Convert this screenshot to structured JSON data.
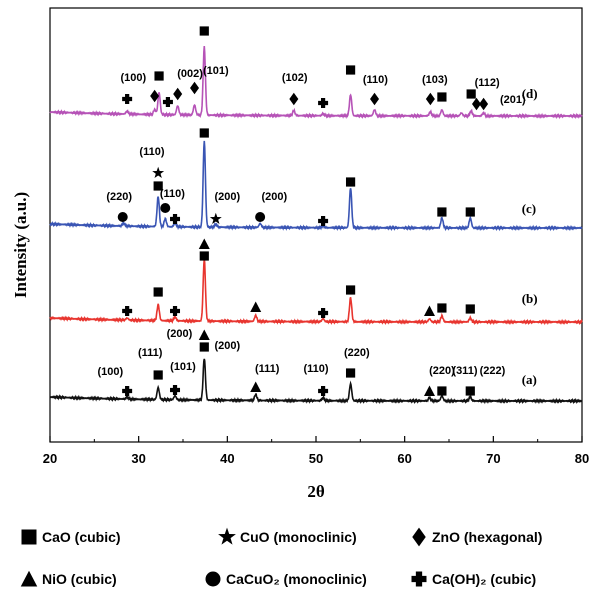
{
  "chart_data": {
    "type": "line",
    "xlabel": "2θ",
    "ylabel": "Intensity (a.u.)",
    "xlim": [
      20,
      80
    ],
    "xticks": [
      20,
      30,
      40,
      50,
      60,
      70,
      80
    ],
    "yticks": "none",
    "grid": false,
    "series": [
      {
        "name": "(a)",
        "color": "#111111",
        "peaks": [
          {
            "x": 28.7,
            "h": 2
          },
          {
            "x": 32.2,
            "h": 12
          },
          {
            "x": 34.1,
            "h": 4
          },
          {
            "x": 37.4,
            "h": 42
          },
          {
            "x": 43.2,
            "h": 6
          },
          {
            "x": 50.8,
            "h": 3
          },
          {
            "x": 53.9,
            "h": 17
          },
          {
            "x": 62.8,
            "h": 3
          },
          {
            "x": 64.2,
            "h": 5
          },
          {
            "x": 67.4,
            "h": 4
          }
        ]
      },
      {
        "name": "(b)",
        "color": "#e8352f",
        "peaks": [
          {
            "x": 28.7,
            "h": 2
          },
          {
            "x": 32.2,
            "h": 16
          },
          {
            "x": 34.1,
            "h": 4
          },
          {
            "x": 37.4,
            "h": 62
          },
          {
            "x": 43.2,
            "h": 6
          },
          {
            "x": 50.8,
            "h": 3
          },
          {
            "x": 53.9,
            "h": 24
          },
          {
            "x": 62.8,
            "h": 3
          },
          {
            "x": 64.2,
            "h": 6
          },
          {
            "x": 67.4,
            "h": 4
          }
        ]
      },
      {
        "name": "(c)",
        "color": "#3a55b4",
        "peaks": [
          {
            "x": 28.3,
            "h": 3
          },
          {
            "x": 32.2,
            "h": 30
          },
          {
            "x": 33.0,
            "h": 8
          },
          {
            "x": 34.1,
            "h": 4
          },
          {
            "x": 37.4,
            "h": 86
          },
          {
            "x": 38.7,
            "h": 3
          },
          {
            "x": 43.7,
            "h": 4
          },
          {
            "x": 50.8,
            "h": 2
          },
          {
            "x": 53.9,
            "h": 40
          },
          {
            "x": 64.2,
            "h": 10
          },
          {
            "x": 67.4,
            "h": 10
          }
        ]
      },
      {
        "name": "(d)",
        "color": "#b653b7",
        "peaks": [
          {
            "x": 28.7,
            "h": 3
          },
          {
            "x": 31.8,
            "h": 5
          },
          {
            "x": 32.3,
            "h": 22
          },
          {
            "x": 34.4,
            "h": 9
          },
          {
            "x": 36.3,
            "h": 10
          },
          {
            "x": 37.4,
            "h": 68
          },
          {
            "x": 47.5,
            "h": 5
          },
          {
            "x": 50.8,
            "h": 2
          },
          {
            "x": 53.9,
            "h": 21
          },
          {
            "x": 56.6,
            "h": 6
          },
          {
            "x": 62.9,
            "h": 4
          },
          {
            "x": 64.2,
            "h": 6
          },
          {
            "x": 66.4,
            "h": 3
          },
          {
            "x": 67.5,
            "h": 5
          },
          {
            "x": 68.9,
            "h": 3
          }
        ]
      }
    ],
    "annotations": [
      {
        "series": "(a)",
        "items": [
          {
            "x": 28.7,
            "symbol": "cross",
            "label": "(100)"
          },
          {
            "x": 32.2,
            "symbol": "square",
            "label": "(111)"
          },
          {
            "x": 34.1,
            "symbol": "cross",
            "label": "(101)"
          },
          {
            "x": 37.4,
            "symbol": "square",
            "label": "(200)"
          },
          {
            "x": 37.4,
            "symbol": "triangle",
            "label": "(200)"
          },
          {
            "x": 43.2,
            "symbol": "triangle",
            "label": "(111)"
          },
          {
            "x": 50.8,
            "symbol": "cross",
            "label": "(110)"
          },
          {
            "x": 53.9,
            "symbol": "square",
            "label": "(220)"
          },
          {
            "x": 62.8,
            "symbol": "triangle",
            "label": "(220)"
          },
          {
            "x": 64.2,
            "symbol": "square",
            "label": "(311)"
          },
          {
            "x": 67.4,
            "symbol": "square",
            "label": "(222)"
          }
        ]
      },
      {
        "series": "(b)",
        "items": [
          {
            "x": 28.7,
            "symbol": "cross",
            "label": ""
          },
          {
            "x": 32.2,
            "symbol": "square",
            "label": ""
          },
          {
            "x": 34.1,
            "symbol": "cross",
            "label": ""
          },
          {
            "x": 37.4,
            "symbol": "square",
            "label": ""
          },
          {
            "x": 37.4,
            "symbol": "triangle",
            "label": ""
          },
          {
            "x": 43.2,
            "symbol": "triangle",
            "label": ""
          },
          {
            "x": 50.8,
            "symbol": "cross",
            "label": ""
          },
          {
            "x": 53.9,
            "symbol": "square",
            "label": ""
          },
          {
            "x": 62.8,
            "symbol": "triangle",
            "label": ""
          },
          {
            "x": 64.2,
            "symbol": "square",
            "label": ""
          },
          {
            "x": 67.4,
            "symbol": "square",
            "label": ""
          }
        ]
      },
      {
        "series": "(c)",
        "items": [
          {
            "x": 28.3,
            "symbol": "circle",
            "label": "(220)"
          },
          {
            "x": 32.2,
            "symbol": "square",
            "label": ""
          },
          {
            "x": 32.2,
            "symbol": "star",
            "label": "(110)"
          },
          {
            "x": 33.0,
            "symbol": "circle",
            "label": "(110)"
          },
          {
            "x": 34.1,
            "symbol": "cross",
            "label": ""
          },
          {
            "x": 37.4,
            "symbol": "square",
            "label": ""
          },
          {
            "x": 38.7,
            "symbol": "star",
            "label": "(200)"
          },
          {
            "x": 43.7,
            "symbol": "circle",
            "label": "(200)"
          },
          {
            "x": 50.8,
            "symbol": "cross",
            "label": ""
          },
          {
            "x": 53.9,
            "symbol": "square",
            "label": ""
          },
          {
            "x": 64.2,
            "symbol": "square",
            "label": ""
          },
          {
            "x": 67.4,
            "symbol": "square",
            "label": ""
          }
        ]
      },
      {
        "series": "(d)",
        "items": [
          {
            "x": 28.7,
            "symbol": "cross",
            "label": ""
          },
          {
            "x": 31.8,
            "symbol": "diamond",
            "label": "(100)"
          },
          {
            "x": 32.3,
            "symbol": "square",
            "label": ""
          },
          {
            "x": 33.3,
            "symbol": "cross",
            "label": ""
          },
          {
            "x": 34.4,
            "symbol": "diamond",
            "label": "(002)"
          },
          {
            "x": 36.3,
            "symbol": "diamond",
            "label": "(101)"
          },
          {
            "x": 37.4,
            "symbol": "square",
            "label": ""
          },
          {
            "x": 47.5,
            "symbol": "diamond",
            "label": "(102)"
          },
          {
            "x": 50.8,
            "symbol": "cross",
            "label": ""
          },
          {
            "x": 53.9,
            "symbol": "square",
            "label": ""
          },
          {
            "x": 56.6,
            "symbol": "diamond",
            "label": "(110)"
          },
          {
            "x": 62.9,
            "symbol": "diamond",
            "label": "(103)"
          },
          {
            "x": 64.2,
            "symbol": "square",
            "label": ""
          },
          {
            "x": 67.5,
            "symbol": "square",
            "label": "(112)"
          },
          {
            "x": 68.1,
            "symbol": "diamond",
            "label": ""
          },
          {
            "x": 68.9,
            "symbol": "diamond",
            "label": "(201)"
          }
        ]
      }
    ],
    "legend": {
      "placement": "bottom",
      "entries": [
        {
          "symbol": "square",
          "label": "CaO (cubic)"
        },
        {
          "symbol": "star",
          "label": "CuO (monoclinic)"
        },
        {
          "symbol": "diamond",
          "label": "ZnO (hexagonal)"
        },
        {
          "symbol": "triangle",
          "label": "NiO (cubic)"
        },
        {
          "symbol": "circle",
          "label": "CaCuO₂ (monoclinic)"
        },
        {
          "symbol": "cross",
          "label": "Ca(OH)₂ (cubic)"
        }
      ]
    }
  }
}
